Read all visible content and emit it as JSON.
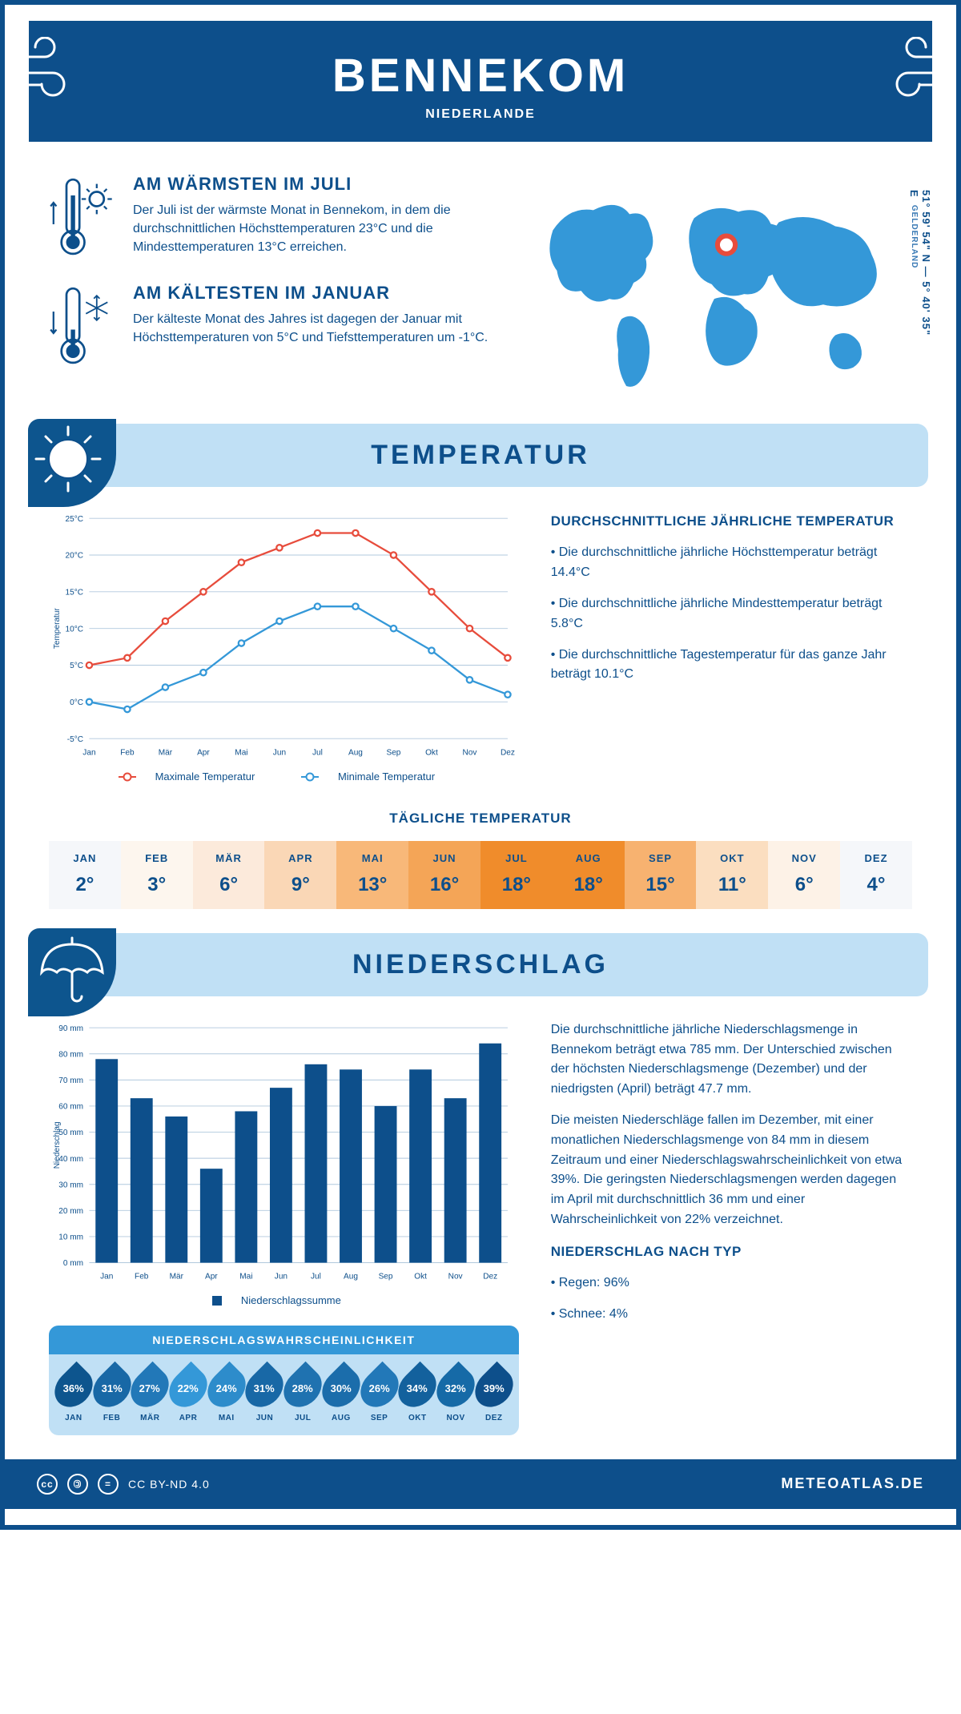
{
  "header": {
    "title": "BENNEKOM",
    "subtitle": "NIEDERLANDE"
  },
  "coords": {
    "text": "51° 59' 54\" N — 5° 40' 35\" E",
    "region": "GELDERLAND"
  },
  "facts": {
    "warm": {
      "title": "AM WÄRMSTEN IM JULI",
      "text": "Der Juli ist der wärmste Monat in Bennekom, in dem die durchschnittlichen Höchsttemperaturen 23°C und die Mindesttemperaturen 13°C erreichen."
    },
    "cold": {
      "title": "AM KÄLTESTEN IM JANUAR",
      "text": "Der kälteste Monat des Jahres ist dagegen der Januar mit Höchsttemperaturen von 5°C und Tiefsttemperaturen um -1°C."
    }
  },
  "temp_section": {
    "heading": "TEMPERATUR",
    "chart": {
      "months": [
        "Jan",
        "Feb",
        "Mär",
        "Apr",
        "Mai",
        "Jun",
        "Jul",
        "Aug",
        "Sep",
        "Okt",
        "Nov",
        "Dez"
      ],
      "max_values": [
        5,
        6,
        11,
        15,
        19,
        21,
        23,
        23,
        20,
        15,
        10,
        6
      ],
      "min_values": [
        0,
        -1,
        2,
        4,
        8,
        11,
        13,
        13,
        10,
        7,
        3,
        1
      ],
      "y_min": -5,
      "y_max": 25,
      "y_step": 5,
      "y_label": "Temperatur",
      "max_color": "#e74c3c",
      "min_color": "#3498d8",
      "grid_color": "#b0c8dd",
      "axis_color": "#0d4f8b",
      "legend_max": "Maximale Temperatur",
      "legend_min": "Minimale Temperatur"
    },
    "stats": {
      "heading": "DURCHSCHNITTLICHE JÄHRLICHE TEMPERATUR",
      "bullets": [
        "• Die durchschnittliche jährliche Höchsttemperatur beträgt 14.4°C",
        "• Die durchschnittliche jährliche Mindesttemperatur beträgt 5.8°C",
        "• Die durchschnittliche Tagestemperatur für das ganze Jahr beträgt 10.1°C"
      ]
    },
    "daily": {
      "heading": "TÄGLICHE TEMPERATUR",
      "months": [
        "JAN",
        "FEB",
        "MÄR",
        "APR",
        "MAI",
        "JUN",
        "JUL",
        "AUG",
        "SEP",
        "OKT",
        "NOV",
        "DEZ"
      ],
      "values": [
        "2°",
        "3°",
        "6°",
        "9°",
        "13°",
        "16°",
        "18°",
        "18°",
        "15°",
        "11°",
        "6°",
        "4°"
      ],
      "colors": [
        "#f5f7fa",
        "#fdf6ee",
        "#fceadb",
        "#fad7b6",
        "#f8b879",
        "#f4a557",
        "#f08c2b",
        "#f08c2b",
        "#f7b270",
        "#fbdec0",
        "#fdf2e7",
        "#f5f7fa"
      ]
    }
  },
  "precip_section": {
    "heading": "NIEDERSCHLAG",
    "chart": {
      "months": [
        "Jan",
        "Feb",
        "Mär",
        "Apr",
        "Mai",
        "Jun",
        "Jul",
        "Aug",
        "Sep",
        "Okt",
        "Nov",
        "Dez"
      ],
      "values": [
        78,
        63,
        56,
        36,
        58,
        67,
        76,
        74,
        60,
        74,
        63,
        84
      ],
      "y_min": 0,
      "y_max": 90,
      "y_step": 10,
      "y_label": "Niederschlag",
      "bar_color": "#0d4f8b",
      "grid_color": "#b0c8dd",
      "legend": "Niederschlagssumme"
    },
    "para1": "Die durchschnittliche jährliche Niederschlagsmenge in Bennekom beträgt etwa 785 mm. Der Unterschied zwischen der höchsten Niederschlagsmenge (Dezember) und der niedrigsten (April) beträgt 47.7 mm.",
    "para2": "Die meisten Niederschläge fallen im Dezember, mit einer monatlichen Niederschlagsmenge von 84 mm in diesem Zeitraum und einer Niederschlagswahrscheinlichkeit von etwa 39%. Die geringsten Niederschlagsmengen werden dagegen im April mit durchschnittlich 36 mm und einer Wahrscheinlichkeit von 22% verzeichnet.",
    "type_heading": "NIEDERSCHLAG NACH TYP",
    "type_bullets": [
      "• Regen: 96%",
      "• Schnee: 4%"
    ],
    "prob": {
      "heading": "NIEDERSCHLAGSWAHRSCHEINLICHKEIT",
      "months": [
        "JAN",
        "FEB",
        "MÄR",
        "APR",
        "MAI",
        "JUN",
        "JUL",
        "AUG",
        "SEP",
        "OKT",
        "NOV",
        "DEZ"
      ],
      "values": [
        "36%",
        "31%",
        "27%",
        "22%",
        "24%",
        "31%",
        "28%",
        "30%",
        "26%",
        "34%",
        "32%",
        "39%"
      ],
      "colors": [
        "#0d558e",
        "#1868a6",
        "#2278b8",
        "#3498d8",
        "#2d8ccb",
        "#1868a6",
        "#1f72b0",
        "#1b6dab",
        "#2278b8",
        "#13619d",
        "#166aa7",
        "#0d4f8b"
      ]
    }
  },
  "footer": {
    "license": "CC BY-ND 4.0",
    "site": "METEOATLAS.DE"
  },
  "colors": {
    "primary": "#0d4f8b",
    "light": "#c0e0f5",
    "accent": "#3498d8"
  }
}
